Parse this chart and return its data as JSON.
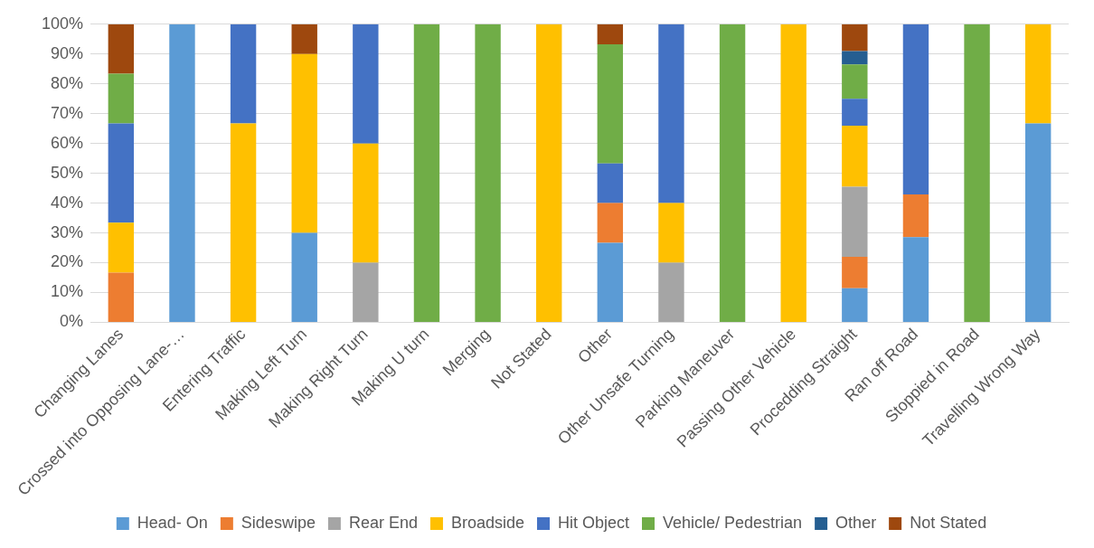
{
  "chart_data": {
    "type": "bar",
    "stacked": true,
    "categories": [
      "Changing Lanes",
      "Crossed into Opposing Lane-…",
      "Entering Traffic",
      "Making Left Turn",
      "Making Right Turn",
      "Making U turn",
      "Merging",
      "Not Stated",
      "Other",
      "Other Unsafe Turning",
      "Parking Maneuver",
      "Passing Other Vehicle",
      "Procedding Straight",
      "Ran off Road",
      "Stoppied in Road",
      "Travelling Wrong Way"
    ],
    "series": [
      {
        "name": "Head- On",
        "color": "#5b9bd5",
        "values": [
          0,
          100,
          0,
          30,
          0,
          0,
          0,
          0,
          26.7,
          0,
          0,
          0,
          11.4,
          28.6,
          0,
          66.7
        ]
      },
      {
        "name": "Sideswipe",
        "color": "#ed7d31",
        "values": [
          16.7,
          0,
          0,
          0,
          0,
          0,
          0,
          0,
          13.3,
          0,
          0,
          0,
          10.6,
          14.3,
          0,
          0
        ]
      },
      {
        "name": "Rear End",
        "color": "#a5a5a5",
        "values": [
          0,
          0,
          0,
          0,
          20,
          0,
          0,
          0,
          0,
          20,
          0,
          0,
          23.5,
          0,
          0,
          0
        ]
      },
      {
        "name": "Broadside",
        "color": "#ffc000",
        "values": [
          16.7,
          0,
          66.7,
          60,
          40,
          0,
          0,
          100,
          0,
          20,
          0,
          100,
          20.5,
          0,
          0,
          33.3
        ]
      },
      {
        "name": "Hit Object",
        "color": "#4472c4",
        "values": [
          33.3,
          0,
          33.3,
          0,
          40,
          0,
          0,
          0,
          13.3,
          60,
          0,
          0,
          9,
          57.1,
          0,
          0
        ]
      },
      {
        "name": "Vehicle/ Pedestrian",
        "color": "#70ad47",
        "values": [
          16.7,
          0,
          0,
          0,
          0,
          100,
          100,
          0,
          40,
          0,
          100,
          0,
          11.5,
          0,
          100,
          0
        ]
      },
      {
        "name": "Other",
        "color": "#255e91",
        "values": [
          0,
          0,
          0,
          0,
          0,
          0,
          0,
          0,
          0,
          0,
          0,
          0,
          4.5,
          0,
          0,
          0
        ]
      },
      {
        "name": "Not Stated",
        "color": "#9e480e",
        "values": [
          16.6,
          0,
          0,
          10,
          0,
          0,
          0,
          0,
          6.7,
          0,
          0,
          0,
          9,
          0,
          0,
          0
        ]
      }
    ],
    "ylim": [
      0,
      100
    ],
    "yticks": [
      {
        "value": 0,
        "label": "0%"
      },
      {
        "value": 10,
        "label": "10%"
      },
      {
        "value": 20,
        "label": "20%"
      },
      {
        "value": 30,
        "label": "30%"
      },
      {
        "value": 40,
        "label": "40%"
      },
      {
        "value": 50,
        "label": "50%"
      },
      {
        "value": 60,
        "label": "60%"
      },
      {
        "value": 70,
        "label": "70%"
      },
      {
        "value": 80,
        "label": "80%"
      },
      {
        "value": 90,
        "label": "90%"
      },
      {
        "value": 100,
        "label": "100%"
      }
    ],
    "grid": "y",
    "legend": "bottom"
  }
}
